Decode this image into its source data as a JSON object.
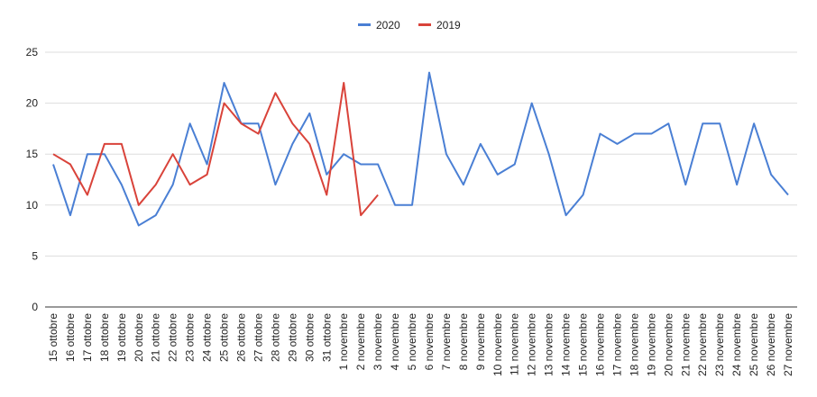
{
  "chart_data": {
    "type": "line",
    "categories": [
      "15 ottobre",
      "16 ottobre",
      "17 ottobre",
      "18 ottobre",
      "19 ottobre",
      "20 ottobre",
      "21 ottobre",
      "22 ottobre",
      "23 ottobre",
      "24 ottobre",
      "25 ottobre",
      "26 ottobre",
      "27 ottobre",
      "28 ottobre",
      "29 ottobre",
      "30 ottobre",
      "31 ottobre",
      "1 novembre",
      "2 novembre",
      "3 novembre",
      "4 novembre",
      "5 novembre",
      "6 novembre",
      "7 novembre",
      "8 novembre",
      "9 novembre",
      "10 novembre",
      "11 novembre",
      "12 novembre",
      "13 novembre",
      "14 novembre",
      "15 novembre",
      "16 novembre",
      "17 novembre",
      "18 novembre",
      "19 novembre",
      "20 novembre",
      "21 novembre",
      "22 novembre",
      "23 novembre",
      "24 novembre",
      "25 novembre",
      "26 novembre",
      "27 novembre"
    ],
    "series": [
      {
        "name": "2020",
        "color": "#4a7fd4",
        "values": [
          14,
          9,
          15,
          15,
          12,
          8,
          9,
          12,
          18,
          14,
          22,
          18,
          18,
          12,
          16,
          19,
          13,
          15,
          14,
          14,
          10,
          10,
          23,
          15,
          12,
          16,
          13,
          14,
          20,
          15,
          9,
          11,
          17,
          16,
          17,
          17,
          18,
          12,
          18,
          18,
          12,
          18,
          13,
          11
        ]
      },
      {
        "name": "2019",
        "color": "#d9433a",
        "values": [
          15,
          14,
          11,
          16,
          16,
          10,
          12,
          15,
          12,
          13,
          20,
          18,
          17,
          21,
          18,
          16,
          11,
          22,
          9,
          11,
          null,
          null,
          null,
          null,
          null,
          null,
          null,
          null,
          null,
          null,
          null,
          null,
          null,
          null,
          null,
          null,
          null,
          null,
          null,
          null,
          null,
          null,
          null,
          null
        ]
      }
    ],
    "ylim": [
      0,
      25
    ],
    "yticks": [
      0,
      5,
      10,
      15,
      20,
      25
    ],
    "grid": true,
    "legend": "top"
  }
}
